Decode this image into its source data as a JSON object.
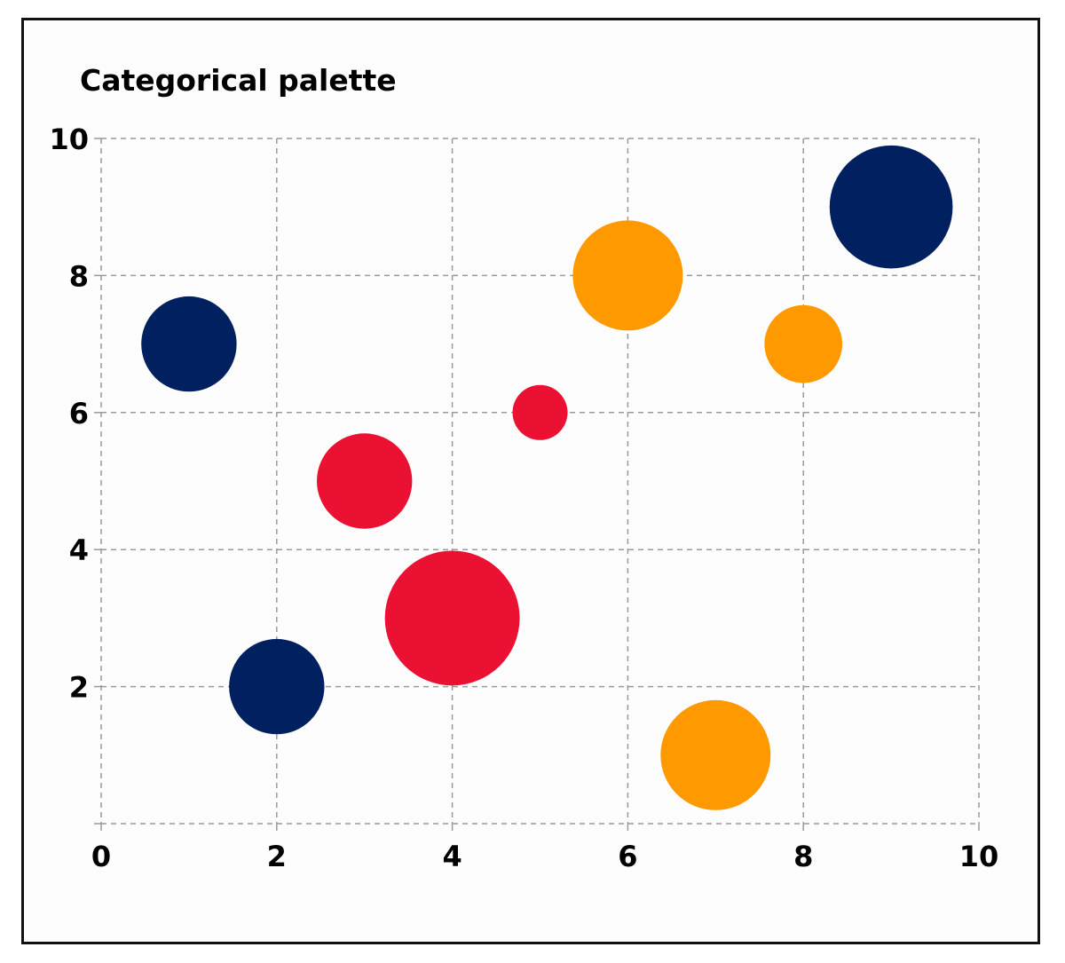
{
  "chart_data": {
    "type": "scatter",
    "title": "Categorical palette",
    "xlabel": "",
    "ylabel": "",
    "xlim": [
      0,
      10
    ],
    "ylim": [
      0,
      10
    ],
    "x_ticks": [
      "0",
      "2",
      "4",
      "6",
      "8",
      "10"
    ],
    "y_ticks": [
      "2",
      "4",
      "6",
      "8",
      "10"
    ],
    "grid": true,
    "grid_style": "dashed",
    "bubble_sizes_relative": true,
    "points": [
      {
        "x": 1,
        "y": 7,
        "size": 3,
        "color": "#002060"
      },
      {
        "x": 2,
        "y": 2,
        "size": 3,
        "color": "#002060"
      },
      {
        "x": 9,
        "y": 9,
        "size": 5,
        "color": "#002060"
      },
      {
        "x": 3,
        "y": 5,
        "size": 3,
        "color": "#EA1133"
      },
      {
        "x": 4,
        "y": 3,
        "size": 6,
        "color": "#EA1133"
      },
      {
        "x": 5,
        "y": 6,
        "size": 1,
        "color": "#EA1133"
      },
      {
        "x": 6,
        "y": 8,
        "size": 4,
        "color": "#FF9900"
      },
      {
        "x": 7,
        "y": 1,
        "size": 4,
        "color": "#FF9900"
      },
      {
        "x": 8,
        "y": 7,
        "size": 2,
        "color": "#FF9900"
      }
    ]
  }
}
